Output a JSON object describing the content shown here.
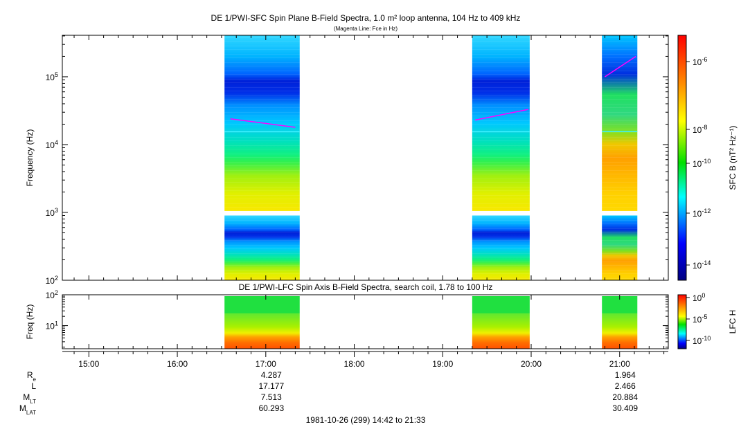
{
  "chart_data": [
    {
      "type": "heatmap",
      "title": "DE 1/PWI-SFC  Spin Plane B-Field Spectra, 1.0 m² loop antenna, 104 Hz to 409 kHz",
      "subtitle": "(Magenta Line: Fce in Hz)",
      "xlabel": "",
      "ylabel": "Frequency (Hz)",
      "yscale": "log",
      "ylim": [
        100,
        409000
      ],
      "xlim": [
        "14:42",
        "21:33"
      ],
      "ytick_labels": [
        "10^2",
        "10^3",
        "10^4",
        "10^5"
      ],
      "colorbar": {
        "label": "SFC B (nT² Hz⁻¹)",
        "scale": "log",
        "ticks": [
          "10^-6",
          "10^-8",
          "10^-10",
          "10^-12",
          "10^-14"
        ]
      },
      "gap_band_hz": [
        900,
        1050
      ],
      "segments": [
        {
          "start": "16:32",
          "end": "17:23"
        },
        {
          "start": "19:20",
          "end": "19:59"
        },
        {
          "start": "20:48",
          "end": "21:12"
        }
      ],
      "fce_lines": [
        {
          "start": "16:36",
          "end": "17:20",
          "f_start": 24000,
          "f_end": 18000
        },
        {
          "start": "19:22",
          "end": "19:58",
          "f_start": 23000,
          "f_end": 33000
        },
        {
          "start": "20:50",
          "end": "21:11",
          "f_start": 100000,
          "f_end": 200000
        }
      ],
      "grid": false,
      "colors": {
        "fce_line": "#ff00ff"
      }
    },
    {
      "type": "heatmap",
      "title": "DE 1/PWI-LFC  Spin Axis B-Field Spectra, search coil, 1.78 to 100 Hz",
      "ylabel": "Freq (Hz)",
      "yscale": "log",
      "ylim": [
        1.78,
        100
      ],
      "ytick_labels": [
        "10^1",
        "10^2"
      ],
      "colorbar": {
        "label": "LFC H",
        "scale": "log",
        "ticks": [
          "10^0",
          "10^-5",
          "10^-10"
        ]
      },
      "segments": [
        {
          "start": "16:32",
          "end": "17:23"
        },
        {
          "start": "19:20",
          "end": "19:59"
        },
        {
          "start": "20:48",
          "end": "21:12"
        }
      ],
      "grid": false
    }
  ],
  "time_axis": {
    "tick_labels": [
      "15:00",
      "16:00",
      "17:00",
      "18:00",
      "19:00",
      "20:00",
      "21:00"
    ]
  },
  "ephemeris": {
    "rows": [
      {
        "label": "R",
        "sub": "e",
        "values": [
          {
            "at": "17:00",
            "text": "4.287"
          },
          {
            "at": "21:00",
            "text": "1.964"
          }
        ]
      },
      {
        "label": "L",
        "sub": "",
        "values": [
          {
            "at": "17:00",
            "text": "17.177"
          },
          {
            "at": "21:00",
            "text": "2.466"
          }
        ]
      },
      {
        "label": "M",
        "sub": "LT",
        "values": [
          {
            "at": "17:00",
            "text": "7.513"
          },
          {
            "at": "21:00",
            "text": "20.884"
          }
        ]
      },
      {
        "label": "M",
        "sub": "LAT",
        "values": [
          {
            "at": "17:00",
            "text": "60.293"
          },
          {
            "at": "21:00",
            "text": "30.409"
          }
        ]
      }
    ]
  },
  "footer": {
    "date_range": "1981-10-26 (299) 14:42 to 21:33"
  }
}
